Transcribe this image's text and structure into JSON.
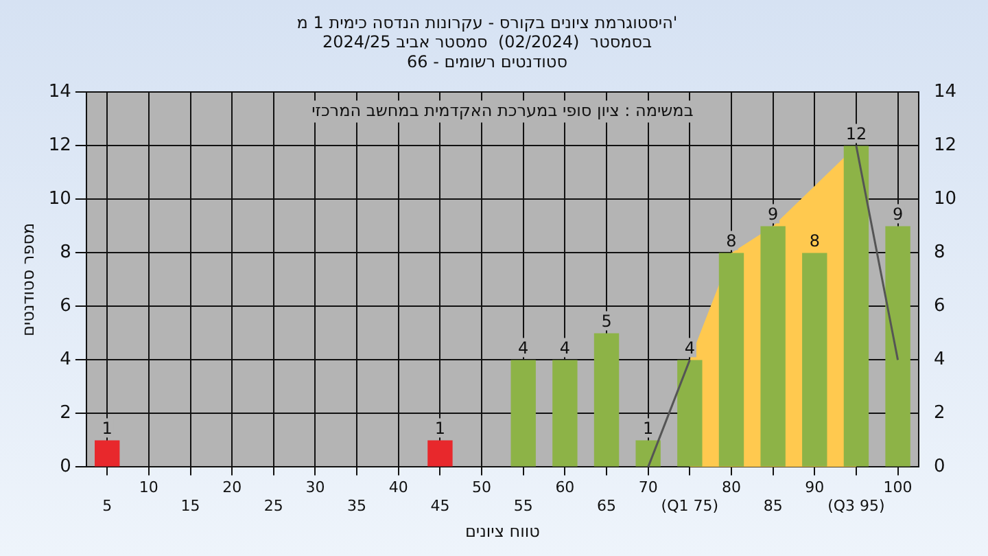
{
  "chart_data": {
    "type": "bar",
    "title": "היסטוגרמת ציונים בקורס - עקרונות הנדסה כימית 1 מ'",
    "subtitle": "בסמסטר  (02/2024)  סמסטר אביב 2024/25\nסטודנטים רשומים - 66",
    "xlabel": "טווח ציונים",
    "ylabel": "מספר סטודנטים",
    "annotations": [
      "במשימה : ציון סופי במערכת האקדמית במחשב המרכזי"
    ],
    "categories": [
      "5",
      "10",
      "15",
      "20",
      "25",
      "30",
      "35",
      "40",
      "45",
      "50",
      "55",
      "60",
      "65",
      "70",
      "(Q1 75)",
      "80",
      "85",
      "90",
      "(Q3 95)",
      "100"
    ],
    "series": [
      {
        "colors": [
          "#e8282c",
          "#8db347",
          "#8db347",
          "#8db347",
          "#8db347",
          "#8db347",
          "#8db347",
          "#8db347",
          "#e8282c",
          "#8db347",
          "#8db347",
          "#8db347",
          "#8db347",
          "#8db347",
          "#8db347",
          "#8db347",
          "#8db347",
          "#8db347",
          "#8db347",
          "#8db347"
        ],
        "values": [
          1,
          0,
          0,
          0,
          0,
          0,
          0,
          0,
          1,
          0,
          4,
          4,
          5,
          1,
          4,
          8,
          9,
          8,
          12,
          9
        ],
        "value_labels": [
          "1",
          null,
          null,
          null,
          null,
          null,
          null,
          null,
          "1",
          null,
          "4",
          "4",
          "5",
          "1",
          "4",
          "8",
          "9",
          "8",
          "12",
          "9"
        ]
      },
      {
        "type": "area",
        "color": "#ffc94f",
        "values": [
          null,
          null,
          null,
          null,
          null,
          null,
          null,
          null,
          null,
          null,
          null,
          null,
          null,
          null,
          4,
          8,
          9,
          10.5,
          12,
          null
        ]
      },
      {
        "type": "line",
        "color": "#555555",
        "values": [
          null,
          null,
          null,
          null,
          null,
          null,
          null,
          null,
          null,
          null,
          null,
          null,
          null,
          0,
          4,
          null,
          null,
          null,
          12,
          4
        ]
      }
    ],
    "ylim": [
      0,
      14
    ],
    "yticks": [
      0,
      2,
      4,
      6,
      8,
      10,
      12,
      14
    ],
    "y2lim": [
      0,
      14
    ],
    "y2ticks": [
      0,
      2,
      4,
      6,
      8,
      10,
      12,
      14
    ],
    "grid": true,
    "legend": false
  }
}
